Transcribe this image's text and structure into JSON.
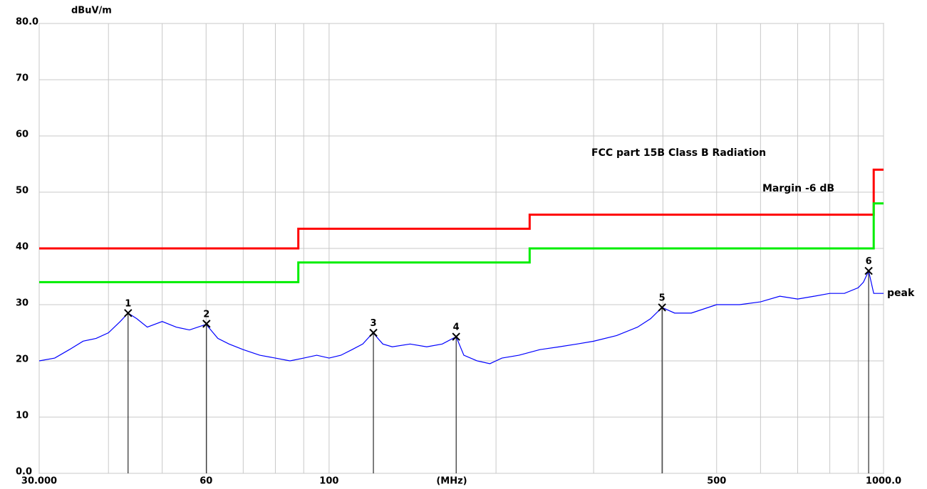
{
  "chart_data": {
    "type": "line",
    "y_label": "dBuV/m",
    "x_label": "(MHz)",
    "xscale": "log",
    "xlim": [
      30,
      1000
    ],
    "ylim": [
      0,
      80
    ],
    "xticks": [
      {
        "value": 30,
        "label": "30.000"
      },
      60,
      100,
      500,
      {
        "value": 1000,
        "label": "1000.0"
      }
    ],
    "xgrid": [
      30,
      40,
      50,
      60,
      70,
      80,
      90,
      100,
      200,
      300,
      400,
      500,
      600,
      700,
      800,
      900,
      1000
    ],
    "yticks": [
      {
        "value": 0,
        "label": "0.0"
      },
      10,
      20,
      30,
      40,
      50,
      60,
      70,
      {
        "value": 80,
        "label": "80.0"
      }
    ],
    "grid": true,
    "series": [
      {
        "name": "FCC part 15B Class B Radiation",
        "color": "#ff0000",
        "x": [
          30,
          88,
          88,
          230,
          230,
          960,
          960,
          1000
        ],
        "values": [
          40,
          40,
          43.5,
          43.5,
          46,
          46,
          54,
          54
        ]
      },
      {
        "name": "Margin -6 dB",
        "color": "#00ee00",
        "x": [
          30,
          88,
          88,
          230,
          230,
          960,
          960,
          1000
        ],
        "values": [
          34,
          34,
          37.5,
          37.5,
          40,
          40,
          48,
          48
        ]
      },
      {
        "name": "peak",
        "color": "#0000ff",
        "x": [
          30,
          32,
          34,
          36,
          38,
          40,
          42,
          43.4,
          45,
          47,
          50,
          53,
          56,
          60,
          63,
          66,
          70,
          75,
          80,
          85,
          90,
          95,
          100,
          105,
          110,
          115,
          120,
          125,
          130,
          140,
          150,
          160,
          169.5,
          175,
          185,
          195,
          205,
          220,
          240,
          260,
          280,
          300,
          330,
          360,
          380,
          398.6,
          420,
          450,
          500,
          550,
          600,
          650,
          700,
          750,
          800,
          850,
          900,
          920,
          940,
          960,
          980,
          1000
        ],
        "values": [
          20,
          20.5,
          22,
          23.5,
          24,
          25,
          27,
          28.5,
          27.5,
          26,
          27,
          26,
          25.5,
          26.5,
          24,
          23,
          22,
          21,
          20.5,
          20,
          20.5,
          21,
          20.5,
          21,
          22,
          23,
          25,
          23,
          22.5,
          23,
          22.5,
          23,
          24.3,
          21,
          20,
          19.5,
          20.5,
          21,
          22,
          22.5,
          23,
          23.5,
          24.5,
          26,
          27.5,
          29.5,
          28.5,
          28.5,
          30,
          30,
          30.5,
          31.5,
          31,
          31.5,
          32,
          32,
          33,
          34,
          36,
          32,
          32,
          32
        ]
      }
    ],
    "markers": {
      "labels": [
        "1",
        "2",
        "3",
        "4",
        "5",
        "6"
      ],
      "x": [
        43.4,
        60.1,
        120.2,
        169.5,
        398.6,
        940
      ],
      "values": [
        28.5,
        26.6,
        25,
        24.3,
        29.5,
        36
      ]
    }
  }
}
